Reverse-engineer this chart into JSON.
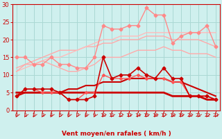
{
  "x": [
    0,
    1,
    2,
    3,
    4,
    5,
    6,
    7,
    8,
    9,
    10,
    11,
    12,
    13,
    14,
    15,
    16,
    17,
    18,
    19,
    20,
    21,
    22,
    23
  ],
  "lines": [
    {
      "y": [
        12,
        13,
        14,
        15,
        16,
        17,
        17,
        17,
        18,
        18,
        19,
        19,
        20,
        20,
        20,
        21,
        21,
        21,
        20,
        20,
        20,
        20,
        19,
        18
      ],
      "color": "#ffaaaa",
      "lw": 1.0,
      "marker": null,
      "ms": 0,
      "zorder": 2
    },
    {
      "y": [
        11,
        12,
        13,
        14,
        15,
        15,
        16,
        17,
        18,
        19,
        20,
        20,
        21,
        21,
        21,
        22,
        22,
        22,
        22,
        22,
        22,
        22,
        22,
        22
      ],
      "color": "#ffbbbb",
      "lw": 1.0,
      "marker": null,
      "ms": 0,
      "zorder": 2
    },
    {
      "y": [
        15,
        15,
        13,
        13,
        15,
        13,
        13,
        12,
        12,
        15,
        24,
        23,
        23,
        24,
        24,
        29,
        27,
        27,
        19,
        21,
        22,
        22,
        24,
        18
      ],
      "color": "#ff8888",
      "lw": 1.0,
      "marker": "D",
      "ms": 2.5,
      "zorder": 3
    },
    {
      "y": [
        11,
        13,
        13,
        14,
        13,
        12,
        11,
        11,
        12,
        13,
        15,
        15,
        15,
        16,
        17,
        17,
        17,
        18,
        17,
        17,
        16,
        16,
        16,
        15
      ],
      "color": "#ffaaaa",
      "lw": 1.0,
      "marker": null,
      "ms": 0,
      "zorder": 2
    },
    {
      "y": [
        4,
        5,
        5,
        5,
        5,
        5,
        6,
        6,
        7,
        7,
        8,
        8,
        8,
        9,
        9,
        9,
        9,
        9,
        8,
        8,
        7,
        6,
        5,
        4
      ],
      "color": "#cc0000",
      "lw": 1.5,
      "marker": null,
      "ms": 0,
      "zorder": 2
    },
    {
      "y": [
        5,
        5,
        5,
        5,
        5,
        5,
        5,
        5,
        5,
        5,
        5,
        5,
        5,
        5,
        5,
        5,
        5,
        5,
        4,
        4,
        4,
        4,
        3,
        3
      ],
      "color": "#cc0000",
      "lw": 2.0,
      "marker": null,
      "ms": 0,
      "zorder": 2
    },
    {
      "y": [
        4,
        6,
        6,
        6,
        6,
        5,
        3,
        3,
        3,
        4,
        15,
        9,
        10,
        10,
        12,
        10,
        9,
        12,
        9,
        9,
        4,
        4,
        4,
        3
      ],
      "color": "#cc0000",
      "lw": 1.2,
      "marker": "D",
      "ms": 2.5,
      "zorder": 4
    },
    {
      "y": [
        4,
        6,
        6,
        5,
        5,
        5,
        3,
        3,
        5,
        5,
        10,
        9,
        9,
        9,
        10,
        9,
        9,
        9,
        8,
        8,
        4,
        4,
        4,
        3
      ],
      "color": "#ff5555",
      "lw": 1.0,
      "marker": "D",
      "ms": 2.0,
      "zorder": 3
    }
  ],
  "xlabel": "Vent moyen/en rafales ( km/h )",
  "xlim": [
    -0.5,
    23.5
  ],
  "ylim": [
    0,
    30
  ],
  "yticks": [
    0,
    5,
    10,
    15,
    20,
    25,
    30
  ],
  "xticks": [
    0,
    1,
    2,
    3,
    4,
    5,
    6,
    7,
    8,
    9,
    10,
    11,
    12,
    13,
    14,
    15,
    16,
    17,
    18,
    19,
    20,
    21,
    22,
    23
  ],
  "bg_color": "#cff0ee",
  "grid_color": "#aad8d4",
  "tick_color": "#cc0000",
  "label_color": "#cc0000"
}
